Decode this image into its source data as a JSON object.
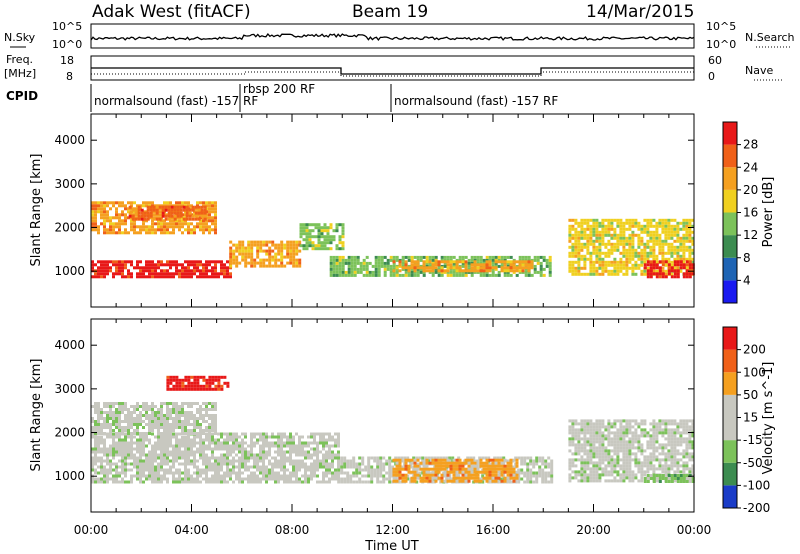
{
  "header": {
    "site": "Adak West (fitACF)",
    "beam": "Beam 19",
    "date": "14/Mar/2015"
  },
  "nsky_panel": {
    "left_label": "N.Sky",
    "right_label": "N.Search",
    "yticks_left": [
      "10^5",
      "10^0"
    ],
    "yticks_right": [
      "10^5",
      "10^0"
    ]
  },
  "freq_panel": {
    "left_label_1": "Freq.",
    "left_label_2": "[MHz]",
    "right_label": "Nave",
    "yticks_left": [
      "18",
      "8"
    ],
    "yticks_right": [
      "60",
      "0"
    ]
  },
  "cpid_panel": {
    "label": "CPID",
    "segments": [
      {
        "start_hour": 0,
        "end_hour": 6,
        "text": "normalsound (fast) -157 RF"
      },
      {
        "start_hour": 6,
        "end_hour": 12,
        "text": "rbsp 200 RF"
      },
      {
        "start_hour": 12,
        "end_hour": 24,
        "text": "normalsound (fast) -157 RF"
      }
    ]
  },
  "x_axis": {
    "title": "Time UT",
    "ticks": [
      "00:00",
      "04:00",
      "08:00",
      "12:00",
      "16:00",
      "20:00",
      "00:00"
    ]
  },
  "chart_data": [
    {
      "type": "heatmap",
      "name": "power-panel",
      "ylabel": "Slant Range [km]",
      "xlabel": "Time UT",
      "ylim": [
        180,
        4600
      ],
      "yticks": [
        1000,
        2000,
        3000,
        4000
      ],
      "colorbar": {
        "label": "Power [dB]",
        "ticks": [
          "4",
          "8",
          "12",
          "16",
          "20",
          "24",
          "28"
        ],
        "colors": [
          "#1a1af0",
          "#1e64b4",
          "#3c8c50",
          "#7cc25a",
          "#f0d020",
          "#f5a020",
          "#f06018",
          "#e81818"
        ]
      },
      "bands": [
        {
          "t0": 0,
          "t1": 5.5,
          "r0": 850,
          "r1": 1250,
          "level": 7
        },
        {
          "t0": 5.5,
          "t1": 8.3,
          "r0": 1150,
          "r1": 1700,
          "level": 5
        },
        {
          "t0": 8.3,
          "t1": 10.0,
          "r0": 1550,
          "r1": 2100,
          "level": 3
        },
        {
          "t0": 0,
          "t1": 5.0,
          "r0": 1900,
          "r1": 2600,
          "level": 5
        },
        {
          "t0": 1.5,
          "t1": 4.5,
          "r0": 2200,
          "r1": 2500,
          "level": 6
        },
        {
          "t0": 9.5,
          "t1": 18.3,
          "r0": 900,
          "r1": 1350,
          "level": 3
        },
        {
          "t0": 12.0,
          "t1": 17.5,
          "r0": 1000,
          "r1": 1250,
          "level": 5
        },
        {
          "t0": 19.0,
          "t1": 24,
          "r0": 950,
          "r1": 2200,
          "level": 4
        },
        {
          "t0": 22.0,
          "t1": 24,
          "r0": 900,
          "r1": 1250,
          "level": 7
        }
      ]
    },
    {
      "type": "heatmap",
      "name": "velocity-panel",
      "ylabel": "Slant Range [km]",
      "xlabel": "Time UT",
      "ylim": [
        180,
        4600
      ],
      "yticks": [
        1000,
        2000,
        3000,
        4000
      ],
      "colorbar": {
        "label": "Velocity [m s^-1]",
        "ticks": [
          "200",
          "100",
          "50",
          "15",
          "-15",
          "-50",
          "-100",
          "-200"
        ],
        "colors": [
          "#1a3cc8",
          "#3c8c50",
          "#7cc25a",
          "#c8c8c0",
          "#c8c8c0",
          "#f5a020",
          "#f06018",
          "#e81818"
        ]
      },
      "bands": [
        {
          "t0": 0,
          "t1": 9.8,
          "r0": 850,
          "r1": 2000,
          "level": 3
        },
        {
          "t0": 0,
          "t1": 5.0,
          "r0": 2000,
          "r1": 2700,
          "level": 3
        },
        {
          "t0": 9.8,
          "t1": 18.3,
          "r0": 850,
          "r1": 1450,
          "level": 3
        },
        {
          "t0": 12.0,
          "t1": 17.0,
          "r0": 900,
          "r1": 1400,
          "level": 5
        },
        {
          "t0": 3.0,
          "t1": 5.5,
          "r0": 3000,
          "r1": 3300,
          "level": 7
        },
        {
          "t0": 19.0,
          "t1": 24,
          "r0": 900,
          "r1": 2300,
          "level": 3
        },
        {
          "t0": 22.0,
          "t1": 24,
          "r0": 850,
          "r1": 1050,
          "level": 2
        }
      ]
    }
  ]
}
